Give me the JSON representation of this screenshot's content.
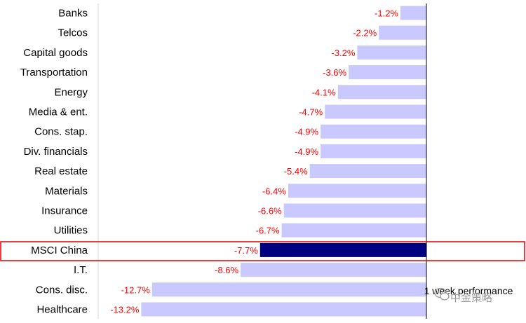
{
  "chart_data": {
    "type": "bar",
    "orientation": "horizontal",
    "categories": [
      "Banks",
      "Telcos",
      "Capital goods",
      "Transportation",
      "Energy",
      "Media & ent.",
      "Cons. stap.",
      "Div. financials",
      "Real estate",
      "Materials",
      "Insurance",
      "Utilities",
      "MSCI China",
      "I.T.",
      "Cons. disc.",
      "Healthcare"
    ],
    "values": [
      -1.2,
      -2.2,
      -3.2,
      -3.6,
      -4.1,
      -4.7,
      -4.9,
      -4.9,
      -5.4,
      -6.4,
      -6.6,
      -6.7,
      -7.7,
      -8.6,
      -12.7,
      -13.2
    ],
    "value_labels": [
      "-1.2%",
      "-2.2%",
      "-3.2%",
      "-3.6%",
      "-4.1%",
      "-4.7%",
      "-4.9%",
      "-4.9%",
      "-5.4%",
      "-6.4%",
      "-6.6%",
      "-6.7%",
      "-7.7%",
      "-8.6%",
      "-12.7%",
      "-13.2%"
    ],
    "highlight_category": "MSCI China",
    "xlim": [
      -15,
      0
    ],
    "grid": false,
    "legend": "bottom-right",
    "series_note": "1 week performance",
    "colors": {
      "bar": "#c9c9ff",
      "highlight_bar": "#000080",
      "value_label": "#ff0000",
      "highlight_box": "#e00000",
      "axis": "#000000",
      "divider": "#d9d9d9"
    }
  },
  "watermark": {
    "text": "中金策略",
    "icon": "wechat-icon"
  }
}
